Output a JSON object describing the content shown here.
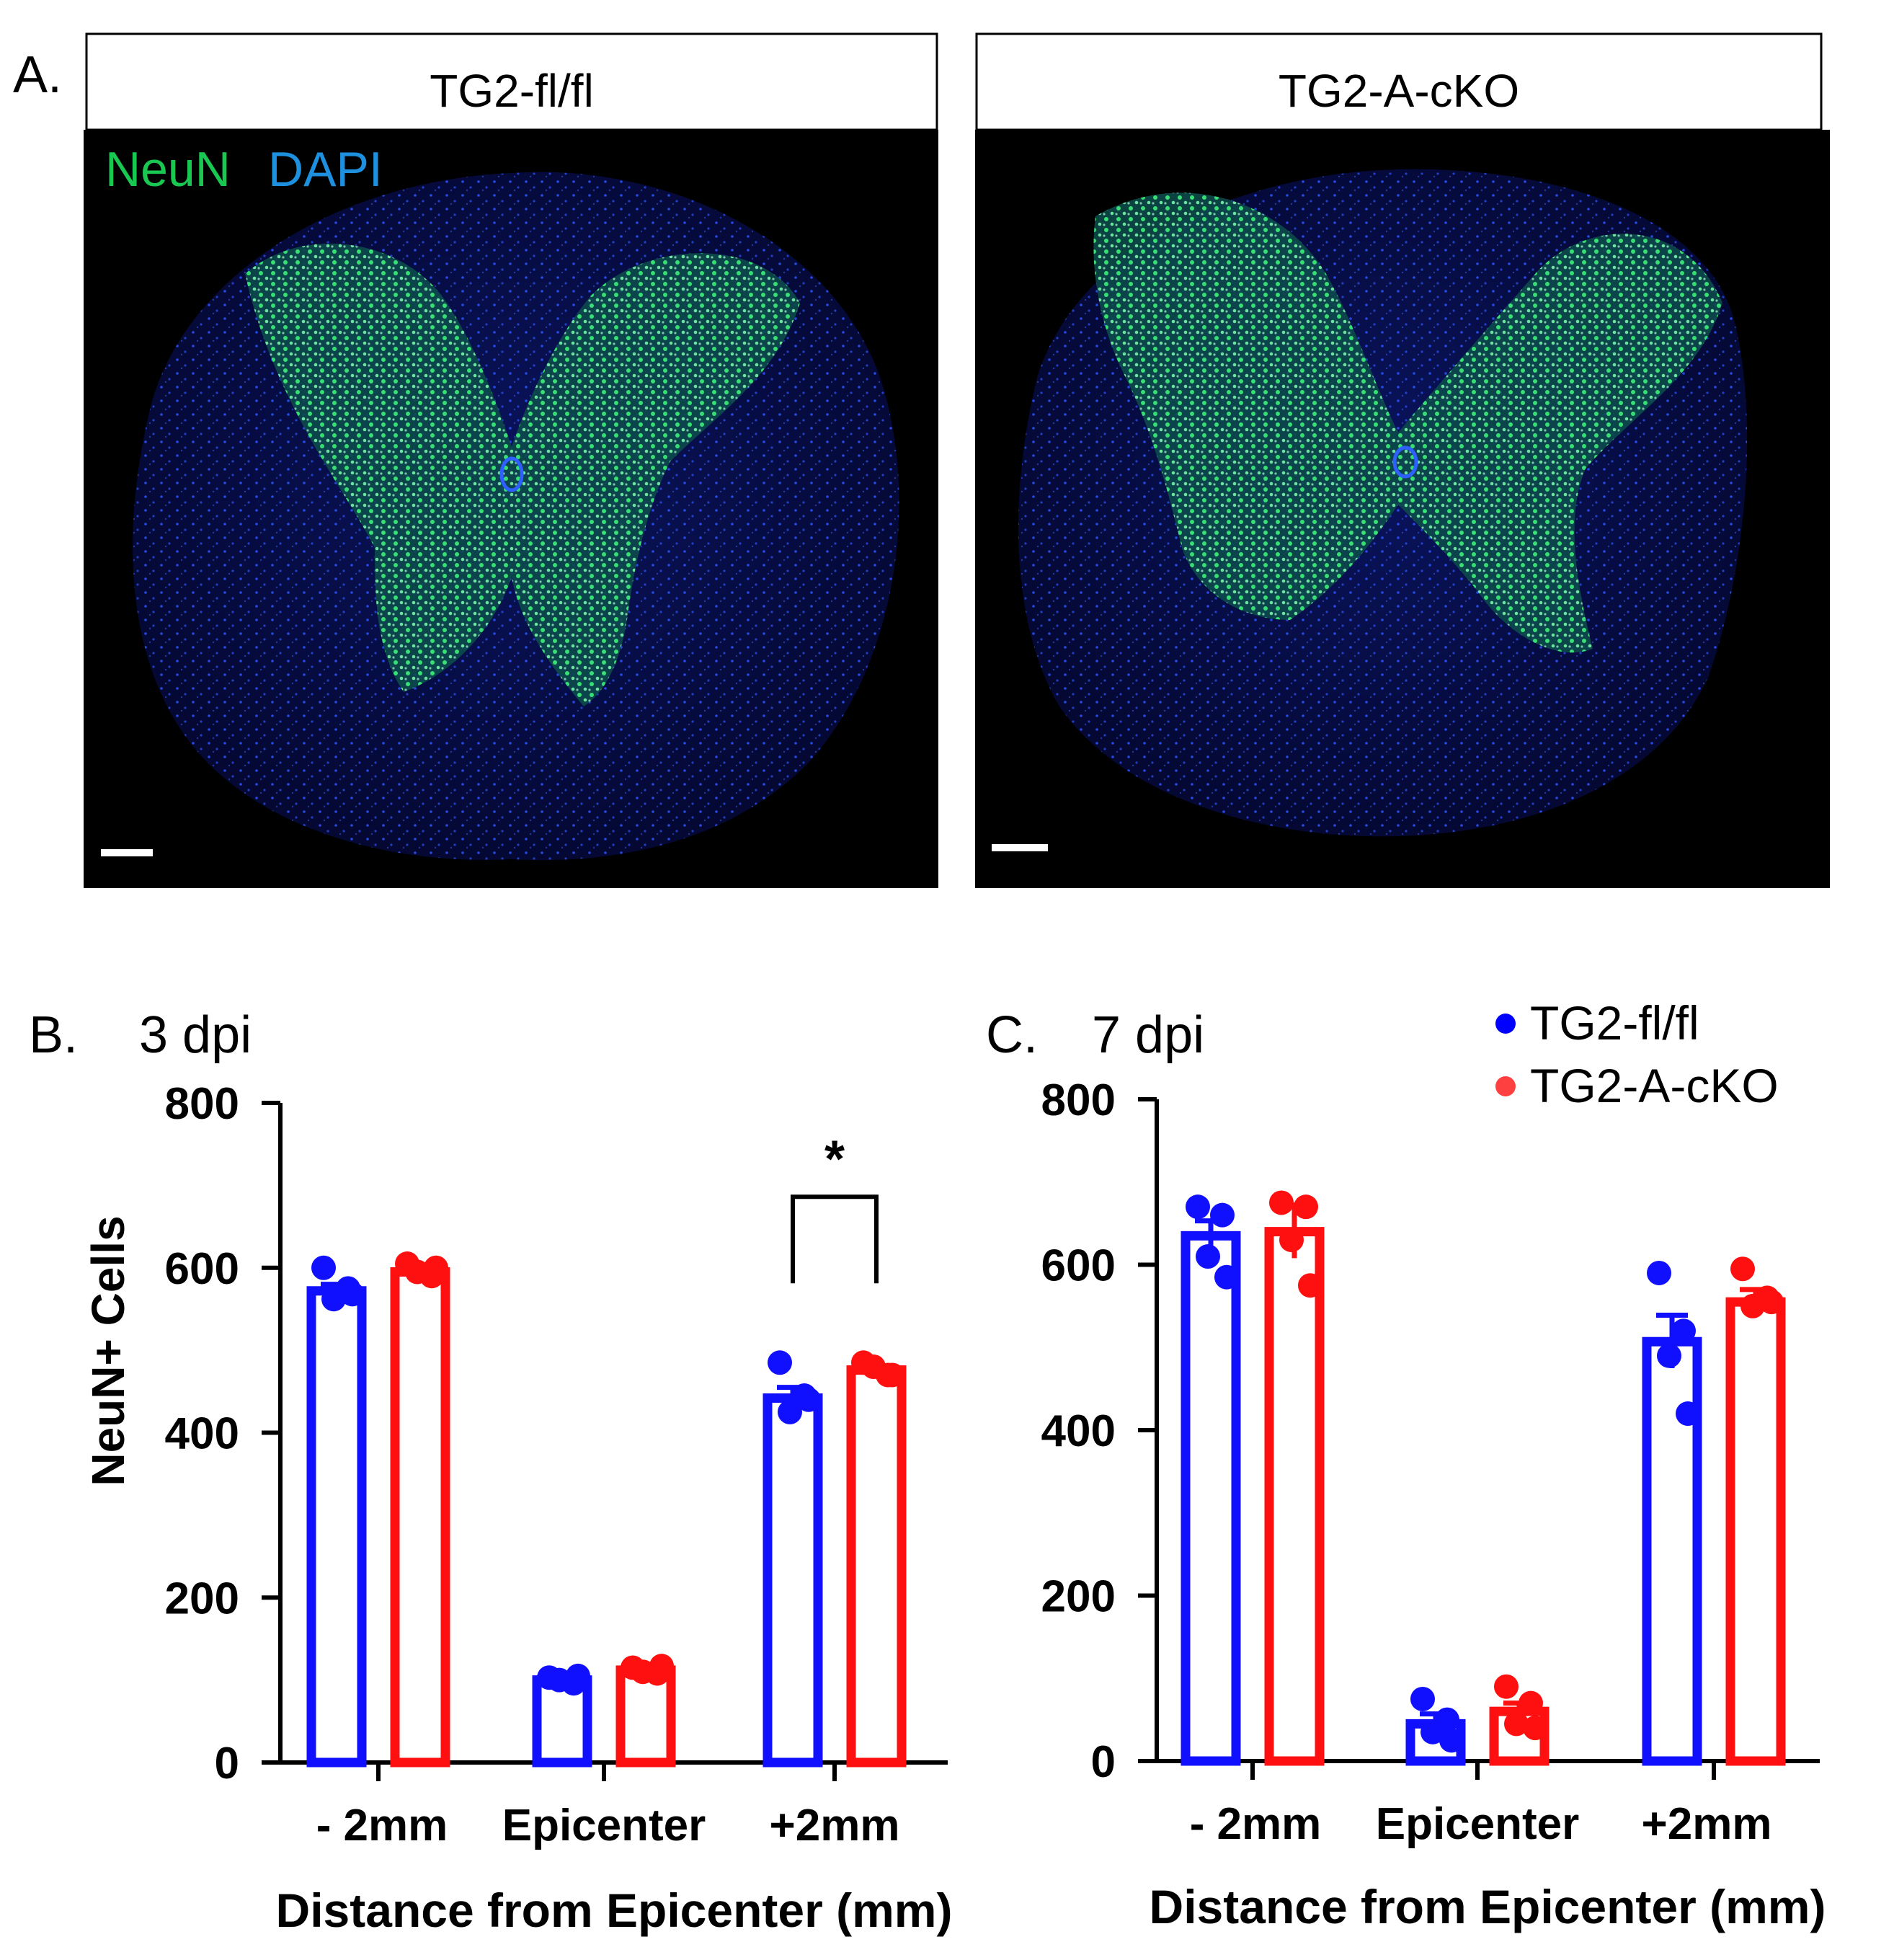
{
  "panel_a": {
    "letter": "A.",
    "stain_labels": {
      "neun": "NeuN",
      "dapi": "DAPI"
    },
    "images": [
      {
        "header": "TG2-fl/fl"
      },
      {
        "header": "TG2-A-cKO"
      }
    ]
  },
  "legend": [
    {
      "name": "TG2-fl/fl",
      "color": "#0000ff"
    },
    {
      "name": "TG2-A-cKO",
      "color": "#ff0000"
    }
  ],
  "colors": {
    "fl": "#1010ff",
    "cko": "#ff1010",
    "neun": "#18c850",
    "dapi": "#1e90e0",
    "tissue": "#070b40"
  },
  "chart_data": [
    {
      "panel": "B.",
      "title": "3 dpi",
      "type": "bar",
      "categories": [
        "- 2mm",
        "Epicenter",
        "+2mm"
      ],
      "xlabel": "Distance from Epicenter (mm)",
      "ylabel": "NeuN+ Cells",
      "ylim": [
        0,
        800
      ],
      "yticks": [
        "0",
        "200",
        "400",
        "600",
        "800"
      ],
      "series": [
        {
          "name": "TG2-fl/fl",
          "values": [
            572,
            100,
            442
          ],
          "sem": [
            8,
            3,
            13
          ],
          "points": [
            [
              600,
              575,
              562,
              568
            ],
            [
              103,
              96,
              100,
              105
            ],
            [
              485,
              445,
              425,
              440
            ]
          ]
        },
        {
          "name": "TG2-A-cKO",
          "values": [
            595,
            112,
            476
          ],
          "sem": [
            5,
            3,
            5
          ],
          "points": [
            [
              605,
              590,
              595,
              600
            ],
            [
              115,
              108,
              110,
              117
            ],
            [
              485,
              470,
              480,
              470
            ]
          ]
        }
      ],
      "significance": [
        {
          "category": "+2mm",
          "label": "*"
        }
      ]
    },
    {
      "panel": "C.",
      "title": "7 dpi",
      "type": "bar",
      "categories": [
        "- 2mm",
        "Epicenter",
        "+2mm"
      ],
      "xlabel": "Distance from Epicenter (mm)",
      "ylabel": "",
      "ylim": [
        0,
        800
      ],
      "yticks": [
        "0",
        "200",
        "400",
        "600",
        "800"
      ],
      "series": [
        {
          "name": "TG2-fl/fl",
          "values": [
            635,
            45,
            507
          ],
          "sem": [
            18,
            12,
            32
          ],
          "points": [
            [
              670,
              660,
              610,
              585
            ],
            [
              75,
              50,
              35,
              25
            ],
            [
              590,
              520,
              490,
              420
            ]
          ]
        },
        {
          "name": "TG2-A-cKO",
          "values": [
            640,
            60,
            555
          ],
          "sem": [
            32,
            10,
            15
          ],
          "points": [
            [
              675,
              670,
              630,
              575
            ],
            [
              90,
              70,
              45,
              40
            ],
            [
              595,
              560,
              550,
              555
            ]
          ]
        }
      ],
      "significance": []
    }
  ]
}
